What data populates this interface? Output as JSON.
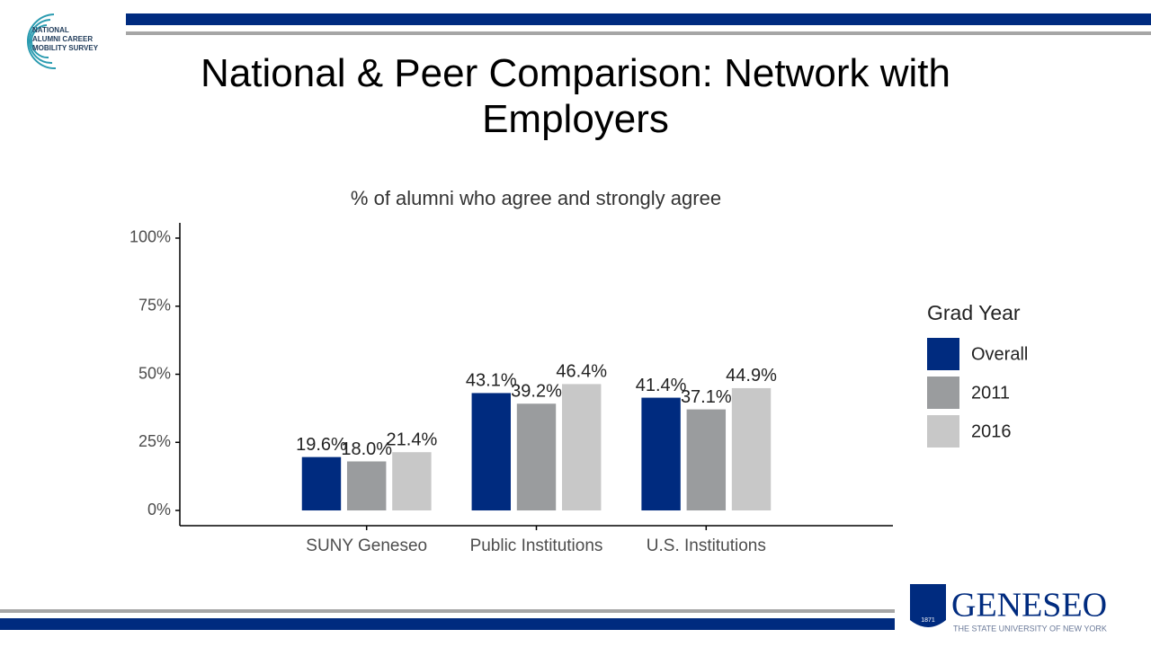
{
  "slide": {
    "title": "National & Peer Comparison: Network with Employers",
    "logo_left": [
      "NATIONAL",
      "ALUMNI CAREER",
      "MOBILITY SURVEY"
    ],
    "logo_right": {
      "name": "GENESEO",
      "tagline": "THE STATE UNIVERSITY OF NEW YORK",
      "year": "1871"
    }
  },
  "chart_data": {
    "type": "bar",
    "title": "% of alumni who agree and strongly agree",
    "categories": [
      "SUNY Geneseo",
      "Public Institutions",
      "U.S. Institutions"
    ],
    "series": [
      {
        "name": "Overall",
        "color": "#002b7f",
        "values": [
          19.6,
          43.1,
          41.4
        ],
        "value_labels": [
          "19.6%",
          "43.1%",
          "41.4%"
        ]
      },
      {
        "name": "2011",
        "color": "#9a9c9e",
        "values": [
          18.0,
          39.2,
          37.1
        ],
        "value_labels": [
          "18.0%",
          "39.2%",
          "37.1%"
        ]
      },
      {
        "name": "2016",
        "color": "#c8c8c8",
        "values": [
          21.4,
          46.4,
          44.9
        ],
        "value_labels": [
          "21.4%",
          "46.4%",
          "44.9%"
        ]
      }
    ],
    "ylim": [
      -5.6,
      105.6
    ],
    "yticks": [
      {
        "value": 0,
        "label": "0%"
      },
      {
        "value": 25,
        "label": "25%"
      },
      {
        "value": 50,
        "label": "50%"
      },
      {
        "value": 75,
        "label": "75%"
      },
      {
        "value": 100,
        "label": "100%"
      }
    ],
    "grid": false,
    "legend_title": "Grad Year",
    "legend": "right"
  }
}
